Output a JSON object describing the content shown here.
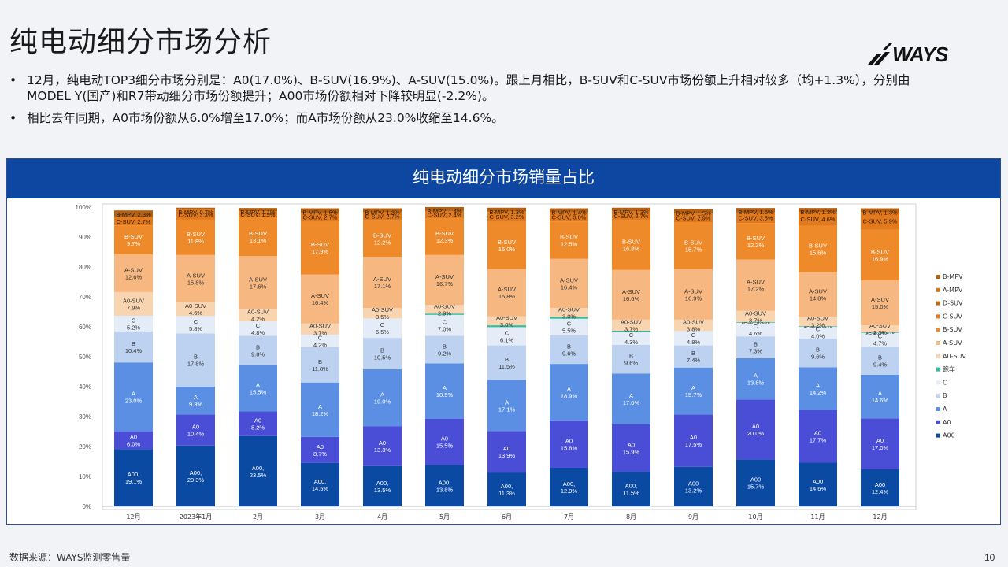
{
  "page": {
    "title": "纯电动细分市场分析",
    "logo_text": "WAYS",
    "bullets": [
      "12月，纯电动TOP3细分市场分别是：A0(17.0%)、B-SUV(16.9%)、A-SUV(15.0%)。跟上月相比，B-SUV和C-SUV市场份额上升相对较多（均+1.3%），分别由MODEL Y(国产)和R7带动细分市场份额提升；A00市场份额相对下降较明显(-2.2%)。",
      "相比去年同期，A0市场份额从6.0%增至17.0%；而A市场份额从23.0%收缩至14.6%。"
    ],
    "bullet_marker": "•",
    "footer_source": "数据来源：WAYS监测零售量",
    "page_number": "10"
  },
  "colors": {
    "header_bg": "#0d47a1",
    "A00": "#0b4aa2",
    "A0": "#4a4ed6",
    "A": "#5b8fe3",
    "B": "#bcd2f0",
    "C": "#e3ecf7",
    "跑车": "#2bbf9e",
    "A0-SUV": "#f8d4b0",
    "A-SUV": "#f6b880",
    "B-SUV": "#ee8a2a",
    "C-SUV": "#e27a1d",
    "B-MPV": "#b45f12"
  },
  "chart_data": {
    "type": "bar",
    "stacked": true,
    "title": "纯电动细分市场销量占比",
    "categories": [
      "12月",
      "2023年1月",
      "2月",
      "3月",
      "4月",
      "5月",
      "6月",
      "7月",
      "8月",
      "9月",
      "10月",
      "11月",
      "12月"
    ],
    "y_ticks": [
      "0%",
      "10%",
      "20%",
      "30%",
      "40%",
      "50%",
      "60%",
      "70%",
      "80%",
      "90%",
      "100%"
    ],
    "ylim": [
      0,
      100
    ],
    "series_order": [
      "A00",
      "A0",
      "A",
      "B",
      "C",
      "跑车",
      "A0-SUV",
      "A-SUV",
      "B-SUV",
      "C-SUV",
      "B-MPV"
    ],
    "series_values": {
      "A00": [
        19.1,
        20.3,
        23.5,
        14.5,
        13.5,
        13.8,
        11.3,
        12.9,
        11.5,
        13.2,
        15.7,
        14.6,
        12.4
      ],
      "A0": [
        6.0,
        10.4,
        8.2,
        8.7,
        13.3,
        15.5,
        13.9,
        15.8,
        15.9,
        17.5,
        20.0,
        17.7,
        17.0
      ],
      "A": [
        23.0,
        9.3,
        15.5,
        18.2,
        19.0,
        18.5,
        17.1,
        18.9,
        17.0,
        15.7,
        13.8,
        14.2,
        14.6
      ],
      "B": [
        10.4,
        17.8,
        9.8,
        11.8,
        10.5,
        9.2,
        11.5,
        9.6,
        9.6,
        7.4,
        7.3,
        9.6,
        9.4
      ],
      "C": [
        5.2,
        5.8,
        4.8,
        4.2,
        6.5,
        7.0,
        6.1,
        5.5,
        4.3,
        4.8,
        4.6,
        4.0,
        4.7
      ],
      "跑车": [
        null,
        null,
        null,
        null,
        null,
        0.4,
        0.6,
        0.6,
        0.4,
        null,
        0.2,
        0.1,
        0.1
      ],
      "A0-SUV": [
        7.9,
        4.6,
        4.2,
        3.7,
        3.5,
        2.9,
        3.0,
        3.0,
        3.7,
        3.8,
        3.7,
        3.2,
        2.3
      ],
      "A-SUV": [
        12.6,
        15.8,
        17.6,
        16.4,
        17.1,
        16.7,
        15.8,
        16.4,
        16.6,
        16.9,
        17.2,
        14.8,
        15.0
      ],
      "B-SUV": [
        9.7,
        11.8,
        13.1,
        17.9,
        12.2,
        12.3,
        16.0,
        12.5,
        16.8,
        15.7,
        12.2,
        15.6,
        16.9
      ],
      "C-SUV": [
        2.7,
        3.3,
        1.9,
        2.7,
        2.7,
        2.4,
        3.2,
        3.0,
        2.7,
        2.9,
        3.5,
        4.6,
        5.9
      ],
      "B-MPV": [
        2.3,
        0.7,
        1.1,
        1.5,
        1.3,
        1.4,
        1.3,
        1.4,
        1.3,
        1.5,
        1.5,
        1.3,
        1.3
      ]
    },
    "labels": {
      "A00": [
        "A00,\n19.1%",
        "A00,\n20.3%",
        "A00,\n23.5%",
        "A00,\n14.5%",
        "A00,\n13.5%",
        "A00,\n13.8%",
        "A00,\n11.3%",
        "A00,\n12.9%",
        "A00,\n11.5%",
        "A00\n13.2%",
        "A00\n15.7%",
        "A00\n14.6%",
        "A00\n12.4%"
      ],
      "A0": [
        "A0\n6.0%",
        "A0\n10.4%",
        "A0\n8.2%",
        "A0\n8.7%",
        "A0\n13.3%",
        "A0\n15.5%",
        "A0\n13.9%",
        "A0\n15.8%",
        "A0\n15.9%",
        "A0\n17.5%",
        "A0\n20.0%",
        "A0\n17.7%",
        "A0\n17.0%"
      ],
      "A": [
        "A\n23.0%",
        "A\n9.3%",
        "A\n15.5%",
        "A\n18.2%",
        "A\n19.0%",
        "A\n18.5%",
        "A\n17.1%",
        "A\n18.9%",
        "A\n17.0%",
        "A\n15.7%",
        "A\n13.8%",
        "A\n14.2%",
        "A\n14.6%"
      ],
      "B": [
        "B\n10.4%",
        "B\n17.8%",
        "B\n9.8%",
        "B\n11.8%",
        "B\n10.5%",
        "B\n9.2%",
        "B\n11.5%",
        "B\n9.6%",
        "B\n9.6%",
        "B\n7.4%",
        "B\n7.3%",
        "B\n9.6%",
        "B\n9.4%"
      ],
      "C": [
        "C\n5.2%",
        "C\n5.8%",
        "C\n4.8%",
        "C\n4.2%",
        "C\n6.5%",
        "C\n7.0%",
        "C\n6.1%",
        "C\n5.5%",
        "C\n4.3%",
        "C\n4.8%",
        "C\n4.6%",
        "C\n4.0%",
        "C\n4.7%"
      ],
      "跑车": [
        null,
        null,
        null,
        null,
        null,
        null,
        null,
        null,
        null,
        null,
        "跑车, 0.2%",
        "跑车, 0.1%",
        "跑车, 0.1%"
      ],
      "A0-SUV": [
        "A0-SUV\n7.9%",
        "A0-SUV\n4.6%",
        "A0-SUV\n4.2%",
        "A0-SUV\n3.7%",
        "A0-SUV\n3.5%",
        "A0-SUV\n2.9%",
        "A0-SUV\n3.0%",
        "A0-SUV\n3.0%",
        "A0-SUV\n3.7%",
        "A0-SUV\n3.8%",
        "A0-SUV\n3.7%",
        "A0-SUV\n3.2%",
        "A0-SUV\n2.3%"
      ],
      "A-SUV": [
        "A-SUV\n12.6%",
        "A-SUV\n15.8%",
        "A-SUV\n17.6%",
        "A-SUV\n16.4%",
        "A-SUV\n17.1%",
        "A-SUV\n16.7%",
        "A-SUV\n15.8%",
        "A-SUV\n16.4%",
        "A-SUV\n16.6%",
        "A-SUV\n16.9%",
        "A-SUV\n17.2%",
        "A-SUV\n14.8%",
        "A-SUV\n15.0%"
      ],
      "B-SUV": [
        "B-SUV\n9.7%",
        "B-SUV\n11.8%",
        "B-SUV\n13.1%",
        "B-SUV\n17.9%",
        "B-SUV\n12.2%",
        "B-SUV\n12.3%",
        "B-SUV\n16.0%",
        "B-SUV\n12.5%",
        "B-SUV\n16.8%",
        "B-SUV\n15.7%",
        "B-SUV\n12.2%",
        "B-SUV\n15.6%",
        "B-SUV\n16.9%"
      ],
      "C-SUV": [
        "C-SUV, 2.7%",
        "C-SUV, 3.3%",
        "C-SUV, 1.9%",
        "C-SUV, 2.7%",
        "C-SUV, 2.7%",
        "C-SUV, 2.4%",
        "C-SUV, 3.2%",
        "C-SUV, 3.0%",
        "C-SUV, 2.7%",
        "C-SUV, 2.9%",
        "C-SUV, 3.5%",
        "C-SUV, 4.6%",
        "C-SUV, 5.9%"
      ],
      "B-MPV": [
        "B-MPV, 2.3%",
        "B-MPV, 0.7%",
        "B-MPV, 1.1%",
        "B-MPV, 1.5%",
        "B-MPV, 1.3%",
        "B-MPV, 1.4%",
        "B-MPV, 1.3%",
        "B-MPV, 1.4%",
        "B-MPV, 1.3%",
        "B-MPV, 1.5%",
        "B-MPV, 1.5%",
        "B-MPV, 1.3%",
        "B-MPV, 1.3%"
      ]
    },
    "legend": [
      {
        "name": "B-MPV",
        "color": "#b45f12"
      },
      {
        "name": "A-MPV",
        "color": "#d67a20"
      },
      {
        "name": "D-SUV",
        "color": "#c26a15"
      },
      {
        "name": "C-SUV",
        "color": "#e27a1d"
      },
      {
        "name": "B-SUV",
        "color": "#ee8a2a"
      },
      {
        "name": "A-SUV",
        "color": "#f6b880"
      },
      {
        "name": "A0-SUV",
        "color": "#f8d4b0"
      },
      {
        "name": "跑车",
        "color": "#2bbf9e"
      },
      {
        "name": "C",
        "color": "#e3ecf7"
      },
      {
        "name": "B",
        "color": "#bcd2f0"
      },
      {
        "name": "A",
        "color": "#5b8fe3"
      },
      {
        "name": "A0",
        "color": "#4a4ed6"
      },
      {
        "name": "A00",
        "color": "#0b4aa2"
      }
    ],
    "legend_position": "right",
    "grid": false
  }
}
